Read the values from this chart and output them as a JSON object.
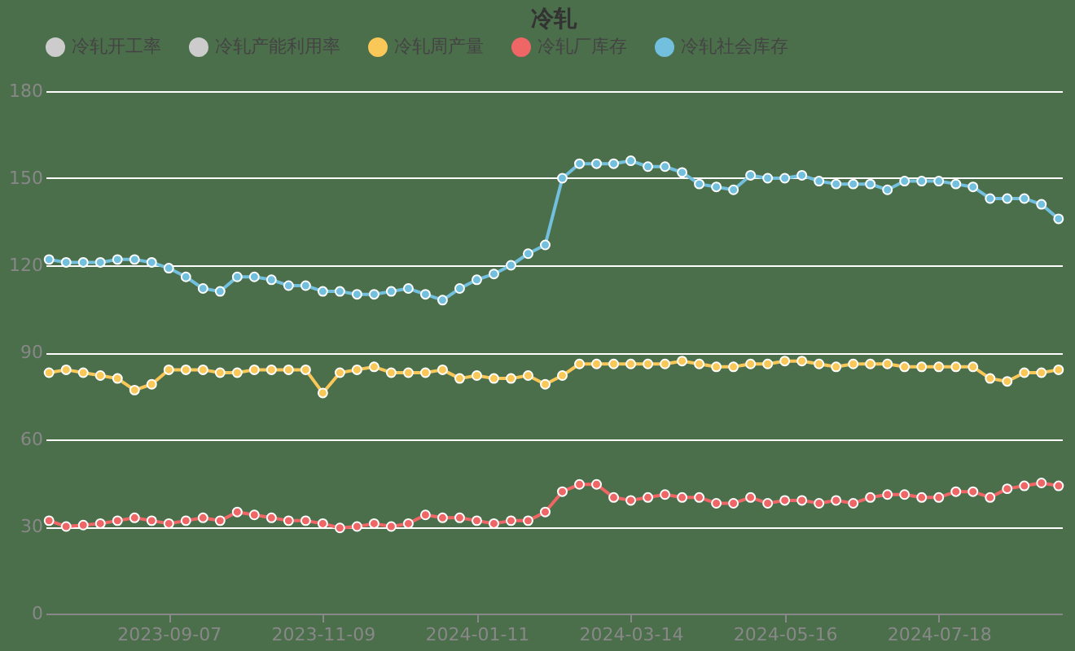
{
  "chart_data": {
    "type": "line",
    "title": "冷轧",
    "categories": [
      null,
      null,
      null,
      null,
      null,
      null,
      null,
      "2023-09-07",
      null,
      null,
      null,
      null,
      null,
      null,
      null,
      null,
      "2023-11-09",
      null,
      null,
      null,
      null,
      null,
      null,
      null,
      null,
      "2024-01-11",
      null,
      null,
      null,
      null,
      null,
      null,
      null,
      null,
      "2024-03-14",
      null,
      null,
      null,
      null,
      null,
      null,
      null,
      null,
      "2024-05-16",
      null,
      null,
      null,
      null,
      null,
      null,
      null,
      null,
      "2024-07-18",
      null,
      null,
      null,
      null,
      null,
      null,
      null
    ],
    "series": [
      {
        "name": "冷轧开工率",
        "color": "#cccccc",
        "values": [
          null,
          null,
          null,
          null,
          null,
          null,
          null,
          null,
          null,
          null,
          null,
          null,
          null,
          null,
          null,
          null,
          null,
          null,
          null,
          null,
          null,
          null,
          null,
          null,
          null,
          null,
          null,
          null,
          null,
          null,
          null,
          null,
          null,
          null,
          null,
          null,
          null,
          null,
          null,
          null,
          null,
          null,
          null,
          null,
          null,
          null,
          null,
          null,
          null,
          null,
          null,
          null,
          null,
          null,
          null,
          null,
          null,
          null,
          null,
          null
        ]
      },
      {
        "name": "冷轧产能利用率",
        "color": "#cccccc",
        "values": [
          null,
          null,
          null,
          null,
          null,
          null,
          null,
          null,
          null,
          null,
          null,
          null,
          null,
          null,
          null,
          null,
          null,
          null,
          null,
          null,
          null,
          null,
          null,
          null,
          null,
          null,
          null,
          null,
          null,
          null,
          null,
          null,
          null,
          null,
          null,
          null,
          null,
          null,
          null,
          null,
          null,
          null,
          null,
          null,
          null,
          null,
          null,
          null,
          null,
          null,
          null,
          null,
          null,
          null,
          null,
          null,
          null,
          null,
          null,
          null
        ]
      },
      {
        "name": "冷轧周产量",
        "color": "#fac858",
        "values": [
          83,
          84,
          83,
          82,
          81,
          77,
          79,
          84,
          84,
          84,
          83,
          83,
          84,
          84,
          84,
          84,
          76,
          83,
          84,
          85,
          83,
          83,
          83,
          84,
          81,
          82,
          81,
          81,
          82,
          79,
          82,
          86,
          86,
          86,
          86,
          86,
          86,
          87,
          86,
          85,
          85,
          86,
          86,
          87,
          87,
          86,
          85,
          86,
          86,
          86,
          85,
          85,
          85,
          85,
          85,
          81,
          80,
          83,
          83,
          84
        ]
      },
      {
        "name": "冷轧厂库存",
        "color": "#ee6666",
        "values": [
          32,
          30,
          30.5,
          31,
          32,
          33,
          32,
          31,
          32,
          33,
          32,
          35,
          34,
          33,
          32,
          32,
          31,
          29.5,
          30,
          31,
          30,
          31,
          34,
          33,
          33,
          32,
          31,
          32,
          32,
          35,
          42,
          44.5,
          44.5,
          40,
          39,
          40,
          41,
          40,
          40,
          38,
          38,
          40,
          38,
          39,
          39,
          38,
          39,
          38,
          40,
          41,
          41,
          40,
          40,
          42,
          42,
          40,
          43,
          44,
          45,
          44
        ]
      },
      {
        "name": "冷轧社会库存",
        "color": "#73c0de",
        "values": [
          122,
          121,
          121,
          121,
          122,
          122,
          121,
          119,
          116,
          112,
          111,
          116,
          116,
          115,
          113,
          113,
          111,
          111,
          110,
          110,
          111,
          112,
          110,
          108,
          112,
          115,
          117,
          120,
          124,
          127,
          150,
          155,
          155,
          155,
          156,
          154,
          154,
          152,
          148,
          147,
          146,
          151,
          150,
          150,
          151,
          149,
          148,
          148,
          148,
          146,
          149,
          149,
          149,
          148,
          147,
          143,
          143,
          143,
          141,
          136
        ]
      }
    ],
    "ylim": [
      0,
      180
    ],
    "yticks": [
      0,
      30,
      60,
      90,
      120,
      150,
      180
    ],
    "grid": "y",
    "legend": "top",
    "marker": "circle",
    "line_style": "solid"
  }
}
